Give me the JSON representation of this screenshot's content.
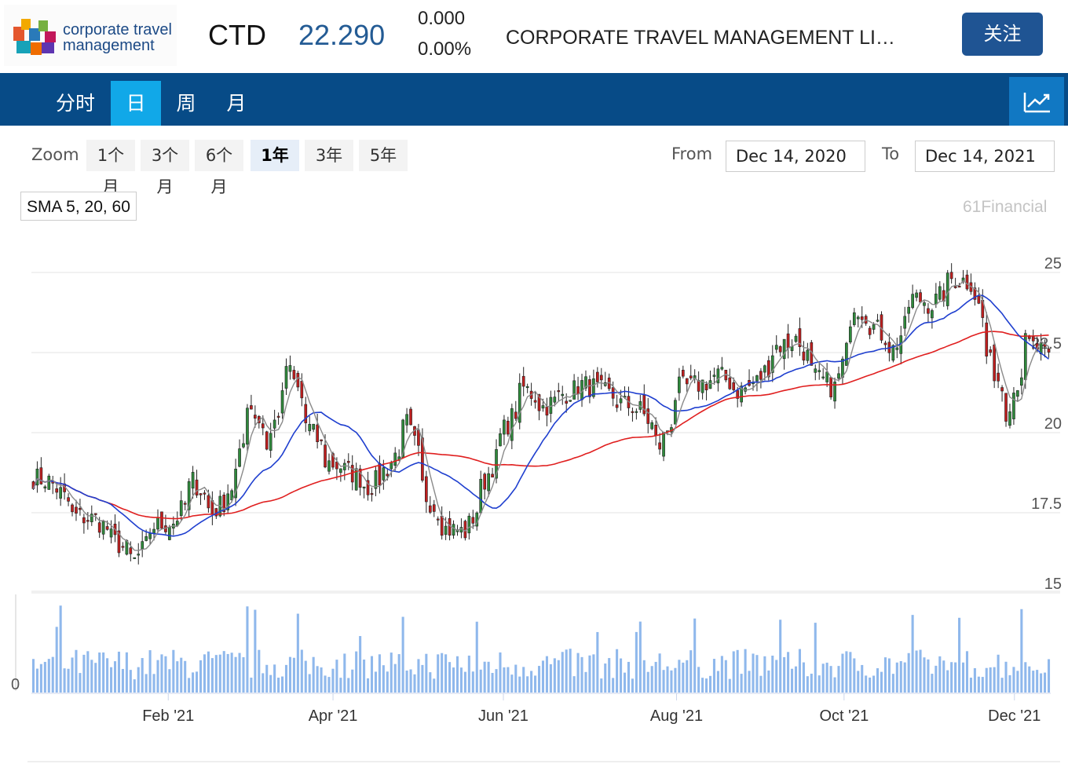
{
  "header": {
    "logo_line1": "corporate travel",
    "logo_line2": "management",
    "ticker": "CTD",
    "price": "22.290",
    "change": "0.000",
    "change_pct": "0.00%",
    "company": "CORPORATE TRAVEL MANAGEMENT LI…",
    "follow_label": "关注"
  },
  "tabs": [
    "分时",
    "日",
    "周",
    "月"
  ],
  "active_tab": "日",
  "zoom": {
    "label": "Zoom",
    "options": [
      "1个月",
      "3个月",
      "6个月",
      "1年",
      "3年",
      "5年"
    ],
    "active": "1年"
  },
  "range": {
    "from_label": "From",
    "from": "Dec 14, 2020",
    "to_label": "To",
    "to": "Dec 14, 2021"
  },
  "indicator_label": "SMA 5, 20, 60",
  "credits": "61Financial",
  "colors": {
    "up": "#2f8a3c",
    "down": "#c01f1f",
    "sma5": "#8a8a8a",
    "sma20": "#1f3fcf",
    "sma60": "#e01f1f",
    "volume": "#8fb8ec",
    "brand": "#1f5493",
    "tabbar": "#074b87",
    "tab_active": "#11a8e8"
  },
  "chart_data": {
    "type": "candlestick",
    "y_axis": {
      "ticks": [
        "25",
        "22.5",
        "20",
        "17.5",
        "15"
      ],
      "range": [
        15,
        25
      ]
    },
    "volume_axis": {
      "ticks": [
        "0"
      ]
    },
    "x_axis": {
      "ticks": [
        "Feb '21",
        "Apr '21",
        "Jun '21",
        "Aug '21",
        "Oct '21",
        "Dec '21"
      ],
      "tick_dates": [
        "2021-02-01",
        "2021-04-01",
        "2021-06-01",
        "2021-08-02",
        "2021-10-01",
        "2021-12-01"
      ],
      "range": [
        "2020-12-14",
        "2021-12-14"
      ]
    },
    "close_anchors": [
      [
        "2020-12-14",
        18.6
      ],
      [
        "2020-12-21",
        18.4
      ],
      [
        "2020-12-28",
        17.4
      ],
      [
        "2021-01-05",
        17.3
      ],
      [
        "2021-01-12",
        16.6
      ],
      [
        "2021-01-19",
        16.0
      ],
      [
        "2021-01-26",
        17.1
      ],
      [
        "2021-02-02",
        17.2
      ],
      [
        "2021-02-09",
        18.5
      ],
      [
        "2021-02-16",
        17.5
      ],
      [
        "2021-02-23",
        18.3
      ],
      [
        "2021-03-01",
        21.0
      ],
      [
        "2021-03-08",
        19.6
      ],
      [
        "2021-03-15",
        22.1
      ],
      [
        "2021-03-22",
        20.3
      ],
      [
        "2021-03-29",
        19.1
      ],
      [
        "2021-04-06",
        18.8
      ],
      [
        "2021-04-13",
        18.3
      ],
      [
        "2021-04-20",
        18.9
      ],
      [
        "2021-04-27",
        20.3
      ],
      [
        "2021-05-04",
        18.0
      ],
      [
        "2021-05-11",
        17.0
      ],
      [
        "2021-05-18",
        16.9
      ],
      [
        "2021-05-25",
        18.5
      ],
      [
        "2021-06-01",
        20.1
      ],
      [
        "2021-06-08",
        21.4
      ],
      [
        "2021-06-15",
        20.8
      ],
      [
        "2021-06-22",
        21.2
      ],
      [
        "2021-06-29",
        21.5
      ],
      [
        "2021-07-06",
        21.3
      ],
      [
        "2021-07-13",
        20.9
      ],
      [
        "2021-07-20",
        20.7
      ],
      [
        "2021-07-27",
        19.6
      ],
      [
        "2021-08-03",
        21.4
      ],
      [
        "2021-08-10",
        21.5
      ],
      [
        "2021-08-17",
        21.8
      ],
      [
        "2021-08-24",
        21.3
      ],
      [
        "2021-08-31",
        21.6
      ],
      [
        "2021-09-07",
        22.7
      ],
      [
        "2021-09-14",
        22.9
      ],
      [
        "2021-09-21",
        21.7
      ],
      [
        "2021-09-28",
        21.4
      ],
      [
        "2021-10-05",
        24.0
      ],
      [
        "2021-10-12",
        23.3
      ],
      [
        "2021-10-19",
        22.6
      ],
      [
        "2021-10-26",
        24.2
      ],
      [
        "2021-11-02",
        24.0
      ],
      [
        "2021-11-09",
        24.8
      ],
      [
        "2021-11-16",
        24.7
      ],
      [
        "2021-11-22",
        22.4
      ],
      [
        "2021-11-29",
        20.7
      ],
      [
        "2021-12-06",
        22.8
      ],
      [
        "2021-12-14",
        22.3
      ]
    ],
    "volume_relative": "bars scaled 0-1 of panel max"
  }
}
